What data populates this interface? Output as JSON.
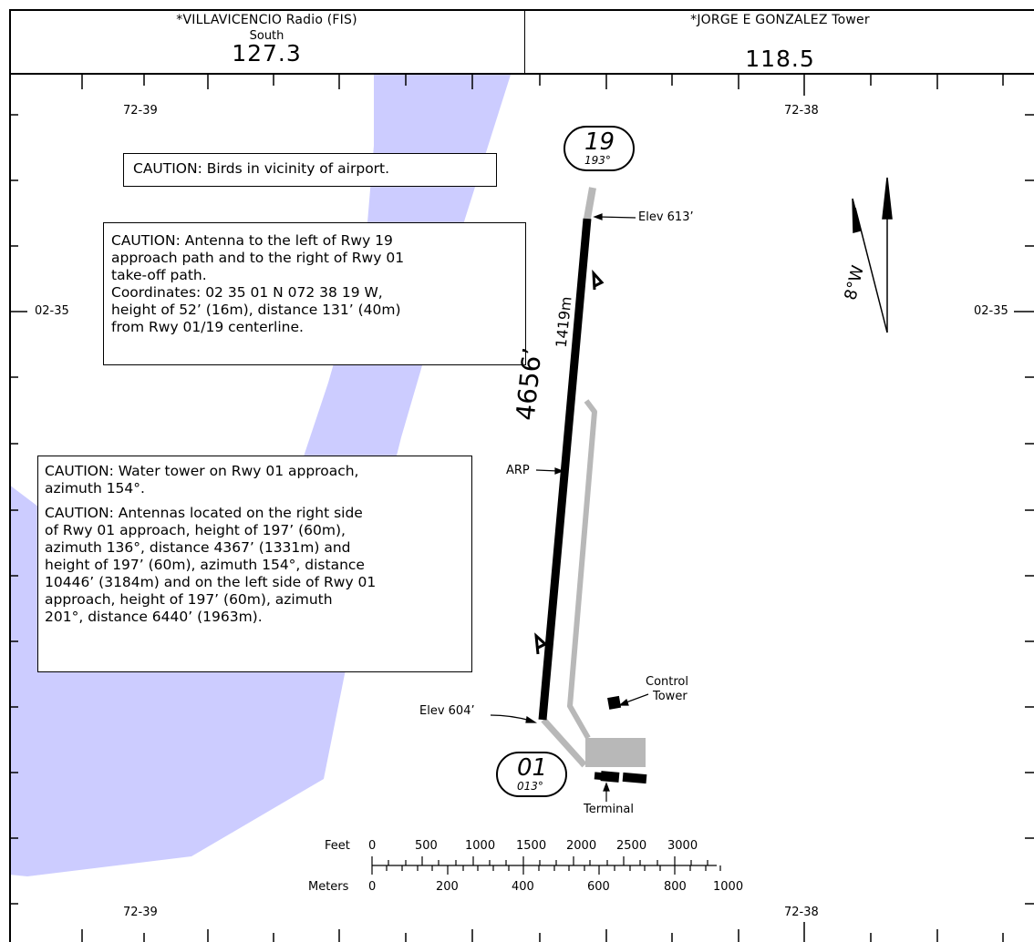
{
  "header": {
    "left": {
      "name": "*VILLAVICENCIO Radio (FIS)",
      "sub": "South",
      "freq": "127.3"
    },
    "right": {
      "name": "*JORGE E GONZALEZ Tower",
      "freq": "118.5"
    }
  },
  "grid": {
    "lon_west": "72-39",
    "lon_east": "72-38",
    "lat": "02-35"
  },
  "cautions": {
    "birds": "CAUTION: Birds in vicinity of airport.",
    "antenna": [
      "CAUTION: Antenna to the left of Rwy 19",
      "approach path and to the right of Rwy 01",
      "take-off path.",
      "Coordinates: 02 35 01 N 072 38 19 W,",
      "height of 52’ (16m), distance 131’ (40m)",
      "from Rwy 01/19 centerline."
    ],
    "water_tower": [
      "CAUTION: Water tower on Rwy 01 approach,",
      "azimuth 154°."
    ],
    "antennas_right_left": [
      "CAUTION: Antennas located on the right side",
      "of Rwy 01 approach, height of 197’ (60m),",
      "azimuth 136°, distance 4367’ (1331m) and",
      "height of 197’ (60m), azimuth 154°, distance",
      "10446’ (3184m) and on the left side of Rwy 01",
      "approach, height of  197’ (60m), azimuth",
      "201°, distance 6440’ (1963m)."
    ]
  },
  "runway": {
    "rwy19": "19",
    "rwy19_hdg": "193°",
    "rwy01": "01",
    "rwy01_hdg": "013°",
    "length_ft": "4656’",
    "length_m": "1419m",
    "elev_north": "Elev 613’",
    "elev_south": "Elev 604’",
    "arp": "ARP"
  },
  "facilities": {
    "control_tower_1": "Control",
    "control_tower_2": "Tower",
    "terminal": "Terminal"
  },
  "variation": "8°W",
  "scale": {
    "feet_label": "Feet",
    "meters_label": "Meters",
    "feet_ticks": [
      "0",
      "500",
      "1000",
      "1500",
      "2000",
      "2500",
      "3000"
    ],
    "meter_ticks": [
      "0",
      "200",
      "400",
      "600",
      "800",
      "1000"
    ]
  },
  "colors": {
    "water": "#ccccff",
    "runway": "#000000",
    "taxiway": "#b8b8b8"
  }
}
